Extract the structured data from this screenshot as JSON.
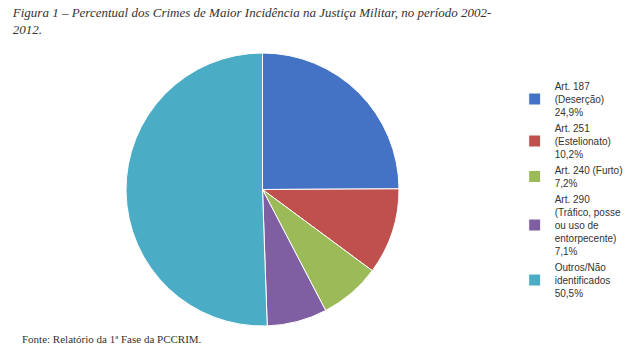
{
  "chart_data": {
    "type": "pie",
    "title": "Figura 1 – Percentual dos Crimes de Maior Incidência na Justiça Militar, no período 2002-\n2012.",
    "annotations": [
      "Fonte: Relatório da 1ª Fase da PCCRIM."
    ],
    "categories": [
      "Art. 187\n(Deserção)\n24,9%",
      "Art. 251\n(Estelionato)\n10,2%",
      "Art. 240 (Furto)\n7,2%",
      "Art. 290\n(Tráfico, posse\nou uso de\nentorpecente)\n7,1%",
      "Outros/Não\nidentificados\n50,5%"
    ],
    "values": [
      24.9,
      10.2,
      7.2,
      7.1,
      50.5
    ],
    "colors": [
      "#4472C4",
      "#C0504D",
      "#9BBB59",
      "#7F5FA1",
      "#4BACC6"
    ],
    "legend": "right"
  }
}
